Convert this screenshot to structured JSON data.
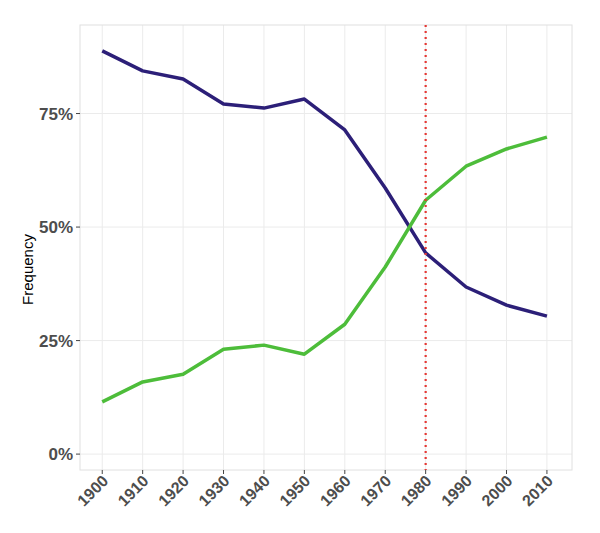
{
  "chart_data": {
    "type": "line",
    "y_label": "Frequency",
    "x": [
      1900,
      1910,
      1920,
      1930,
      1940,
      1950,
      1960,
      1970,
      1980,
      1990,
      2000,
      2010
    ],
    "series": [
      {
        "color": "#2c1f78",
        "values": [
          88.8,
          84.4,
          82.6,
          77.1,
          76.2,
          78.2,
          71.4,
          58.6,
          44.3,
          36.8,
          32.8,
          30.4
        ]
      },
      {
        "color": "#4dbd3a",
        "values": [
          11.5,
          15.9,
          17.6,
          23.1,
          24.0,
          22.0,
          28.6,
          41.2,
          55.9,
          63.4,
          67.2,
          69.8
        ]
      }
    ],
    "xlim": [
      1894.5,
      2016.2
    ],
    "xticks": [
      1900,
      1910,
      1920,
      1930,
      1940,
      1950,
      1960,
      1970,
      1980,
      1990,
      2000,
      2010
    ],
    "ylim": [
      -3.5,
      94.5
    ],
    "yticks": [
      {
        "value": 0,
        "label": "0%"
      },
      {
        "value": 25,
        "label": "25%"
      },
      {
        "value": 50,
        "label": "50%"
      },
      {
        "value": 75,
        "label": "75%"
      }
    ],
    "grid": true,
    "reference_lines": [
      {
        "x": 1980,
        "color": "#e53935",
        "line_style": "dotted"
      }
    ]
  }
}
